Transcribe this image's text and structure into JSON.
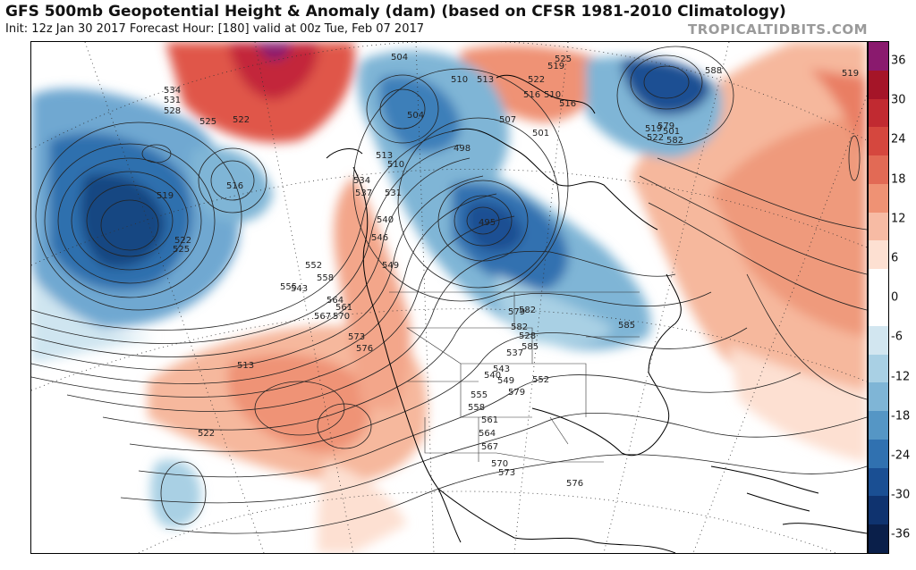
{
  "header": {
    "title": "GFS 500mb Geopotential Height & Anomaly (dam) (based on CFSR 1981-2010 Climatology)",
    "subtitle": "Init: 12z Jan 30 2017   Forecast Hour: [180]   valid at 00z Tue, Feb 07 2017",
    "brand": "TROPICALTIDBITS.COM"
  },
  "colorbar": {
    "ticks": [
      "36",
      "30",
      "24",
      "18",
      "12",
      "6",
      "0",
      "-6",
      "-12",
      "-18",
      "-24",
      "-30",
      "-36"
    ],
    "colors": [
      "#8a1a6e",
      "#a51528",
      "#c12a31",
      "#d5473e",
      "#e26a55",
      "#ef9274",
      "#f7bba4",
      "#fde0d2",
      "#ffffff",
      "#ffffff",
      "#d2e6f0",
      "#a9d0e4",
      "#7fb5d6",
      "#5596c5",
      "#3071b0",
      "#1a4f93",
      "#0f336f",
      "#0a1f4a"
    ]
  },
  "map": {
    "contour_labels": [
      "534",
      "531",
      "528",
      "525",
      "522",
      "519",
      "516",
      "525",
      "522",
      "513",
      "510",
      "504",
      "507",
      "501",
      "498",
      "495",
      "504",
      "510",
      "516",
      "519",
      "522",
      "525",
      "513",
      "519",
      "522",
      "510",
      "516",
      "534",
      "537",
      "531",
      "540",
      "546",
      "549",
      "552",
      "555",
      "558",
      "543",
      "561",
      "564",
      "567",
      "570",
      "573",
      "576",
      "579",
      "582",
      "585",
      "528",
      "537",
      "540",
      "543",
      "549",
      "552",
      "555",
      "558",
      "561",
      "564",
      "567",
      "570",
      "573",
      "576",
      "579",
      "582",
      "585",
      "588",
      "579",
      "582",
      "501",
      "519",
      "522",
      "513"
    ]
  }
}
